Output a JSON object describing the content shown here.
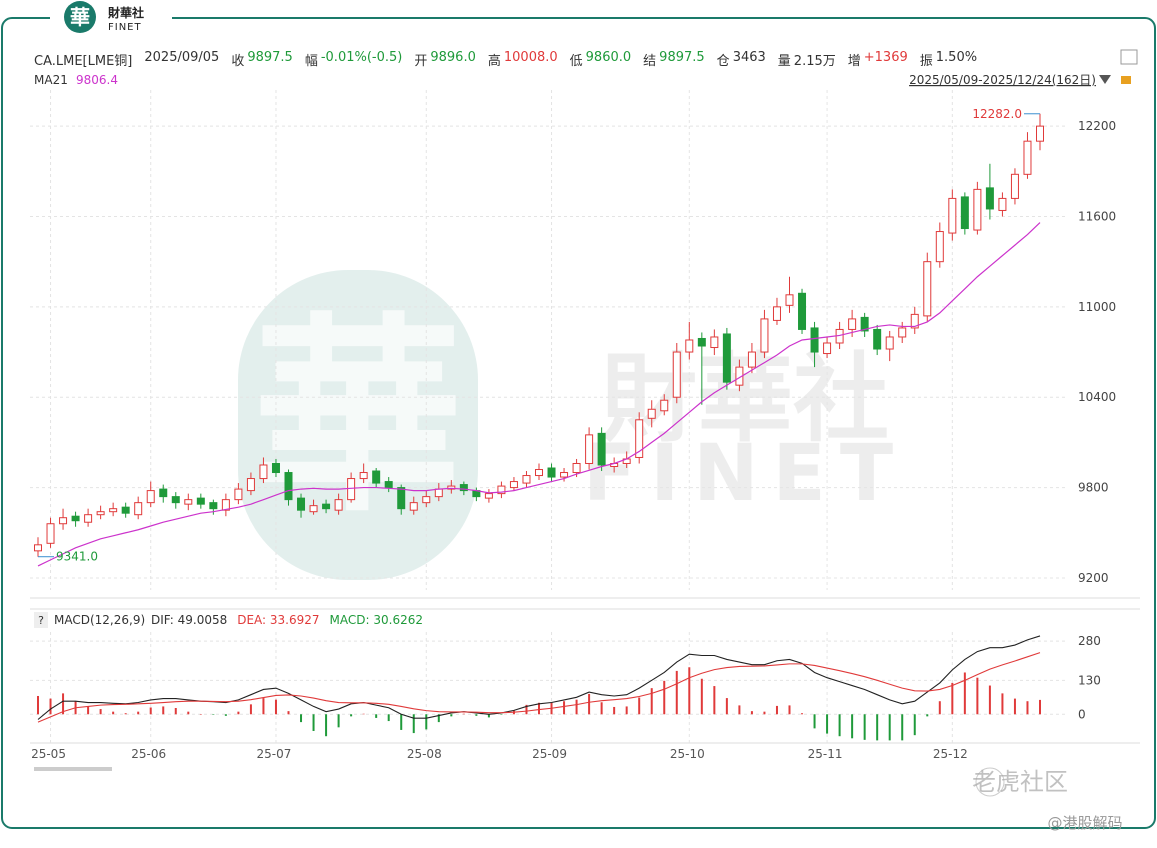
{
  "logo": {
    "mark": "華",
    "name": "財華社",
    "brand": "FINET"
  },
  "quote": {
    "symbol": "CA.LME[LME铜]",
    "date": "2025/09/05",
    "fields": [
      {
        "label": "收",
        "value": "9897.5"
      },
      {
        "label": "幅",
        "value": "-0.01%(-0.5)"
      },
      {
        "label": "开",
        "value": "9896.0"
      },
      {
        "label": "高",
        "value": "10008.0"
      },
      {
        "label": "低",
        "value": "9860.0"
      },
      {
        "label": "结",
        "value": "9897.5"
      },
      {
        "label": "仓",
        "value": "3463"
      },
      {
        "label": "量",
        "value": "2.15万"
      },
      {
        "label": "增",
        "value": "+1369"
      },
      {
        "label": "振",
        "value": "1.50%"
      }
    ]
  },
  "range": "2025/05/09-2025/12/24(162日)",
  "watermark": {
    "mark": "華",
    "name": "財華社",
    "brand": "FINET"
  },
  "footer": {
    "community": "老虎社区",
    "handle": "@港股解码"
  },
  "chart_data": [
    {
      "type": "candlestick",
      "categories": [
        null,
        "25-05",
        null,
        null,
        null,
        null,
        null,
        null,
        null,
        "25-06",
        null,
        null,
        null,
        null,
        null,
        null,
        null,
        null,
        null,
        "25-07",
        null,
        null,
        null,
        null,
        null,
        null,
        null,
        null,
        null,
        null,
        null,
        "25-08",
        null,
        null,
        null,
        null,
        null,
        null,
        null,
        null,
        null,
        "25-09",
        null,
        null,
        null,
        null,
        null,
        null,
        null,
        null,
        null,
        null,
        "25-10",
        null,
        null,
        null,
        null,
        null,
        null,
        null,
        null,
        null,
        null,
        "25-11",
        null,
        null,
        null,
        null,
        null,
        null,
        null,
        null,
        null,
        "25-12",
        null,
        null,
        null,
        null,
        null,
        null,
        null
      ],
      "open": [
        9380,
        9430,
        9560,
        9610,
        9570,
        9620,
        9640,
        9670,
        9620,
        9700,
        9790,
        9740,
        9690,
        9730,
        9700,
        9650,
        9720,
        9780,
        9860,
        9960,
        9900,
        9730,
        9640,
        9690,
        9650,
        9720,
        9860,
        9910,
        9840,
        9800,
        9650,
        9700,
        9740,
        9790,
        9820,
        9780,
        9730,
        9760,
        9800,
        9830,
        9880,
        9930,
        9870,
        9900,
        9960,
        10160,
        9940,
        9960,
        10000,
        10260,
        10310,
        10400,
        10700,
        10790,
        10730,
        10820,
        10480,
        10600,
        10700,
        10910,
        11010,
        11090,
        10860,
        10690,
        10760,
        10850,
        10930,
        10850,
        10720,
        10800,
        10860,
        10940,
        11300,
        11490,
        11730,
        11510,
        11790,
        11640,
        11720,
        11880,
        12100
      ],
      "high": [
        9470,
        9600,
        9660,
        9640,
        9660,
        9680,
        9700,
        9700,
        9740,
        9840,
        9820,
        9770,
        9760,
        9760,
        9720,
        9760,
        9830,
        9900,
        10000,
        9990,
        9920,
        9760,
        9720,
        9720,
        9760,
        9900,
        9960,
        9930,
        9870,
        9820,
        9740,
        9780,
        9830,
        9850,
        9840,
        9800,
        9790,
        9840,
        9870,
        9910,
        9960,
        9960,
        9930,
        9990,
        10200,
        10200,
        10000,
        10040,
        10300,
        10380,
        10420,
        10760,
        10900,
        10830,
        10850,
        10860,
        10650,
        10760,
        10980,
        11060,
        11200,
        11120,
        10900,
        10800,
        10900,
        10980,
        10960,
        10880,
        10840,
        10900,
        11000,
        11360,
        11560,
        11780,
        11760,
        11830,
        11950,
        11760,
        11920,
        12160,
        12282
      ],
      "low": [
        9341,
        9400,
        9520,
        9540,
        9540,
        9590,
        9610,
        9600,
        9590,
        9670,
        9700,
        9660,
        9650,
        9660,
        9620,
        9610,
        9690,
        9750,
        9830,
        9870,
        9680,
        9600,
        9620,
        9630,
        9620,
        9700,
        9830,
        9800,
        9770,
        9620,
        9620,
        9670,
        9710,
        9760,
        9750,
        9710,
        9700,
        9730,
        9780,
        9800,
        9850,
        9840,
        9840,
        9870,
        9920,
        9910,
        9900,
        9930,
        9960,
        10200,
        10280,
        10360,
        10650,
        10350,
        10680,
        10450,
        10440,
        10560,
        10660,
        10880,
        10960,
        10820,
        10600,
        10660,
        10720,
        10800,
        10800,
        10680,
        10640,
        10760,
        10820,
        10900,
        11260,
        11440,
        11480,
        11480,
        11580,
        11600,
        11680,
        11850,
        12040
      ],
      "close": [
        9420,
        9560,
        9600,
        9580,
        9620,
        9640,
        9660,
        9630,
        9700,
        9780,
        9740,
        9700,
        9720,
        9690,
        9660,
        9720,
        9790,
        9860,
        9950,
        9900,
        9720,
        9650,
        9680,
        9660,
        9720,
        9860,
        9900,
        9830,
        9800,
        9660,
        9700,
        9740,
        9790,
        9810,
        9780,
        9740,
        9760,
        9810,
        9840,
        9880,
        9920,
        9870,
        9900,
        9960,
        10150,
        9950,
        9960,
        9990,
        10250,
        10320,
        10380,
        10700,
        10780,
        10740,
        10800,
        10500,
        10600,
        10700,
        10920,
        11000,
        11080,
        10850,
        10700,
        10760,
        10850,
        10920,
        10840,
        10720,
        10800,
        10860,
        10950,
        11300,
        11500,
        11720,
        11520,
        11780,
        11650,
        11720,
        11880,
        12100,
        12200
      ],
      "up_color": "#e03a3a",
      "down_color": "#1f9a3a",
      "series": [
        {
          "name": "MA21",
          "legend_value": "9806.4",
          "color": "#cc33cc",
          "values": [
            9280,
            9320,
            9360,
            9400,
            9430,
            9460,
            9480,
            9500,
            9520,
            9545,
            9570,
            9590,
            9610,
            9630,
            9640,
            9655,
            9670,
            9690,
            9720,
            9750,
            9780,
            9790,
            9795,
            9790,
            9790,
            9795,
            9800,
            9800,
            9795,
            9790,
            9780,
            9780,
            9790,
            9795,
            9790,
            9780,
            9765,
            9770,
            9780,
            9800,
            9820,
            9840,
            9860,
            9890,
            9915,
            9940,
            9960,
            9990,
            10040,
            10100,
            10160,
            10230,
            10300,
            10370,
            10430,
            10480,
            10530,
            10580,
            10630,
            10680,
            10740,
            10780,
            10790,
            10800,
            10810,
            10830,
            10850,
            10870,
            10880,
            10870,
            10870,
            10900,
            10960,
            11040,
            11120,
            11200,
            11270,
            11340,
            11410,
            11480,
            11560
          ]
        }
      ],
      "annotations": [
        {
          "text": "12282.0",
          "value": 12282,
          "color": "#e03a3a"
        },
        {
          "text": "9341.0",
          "value": 9341,
          "color": "#1f9a3a"
        }
      ],
      "ylim": [
        9120,
        12400
      ],
      "yticks": [
        9200,
        9800,
        10400,
        11000,
        11600,
        12200
      ],
      "grid": true
    },
    {
      "type": "macd",
      "title": "MACD(12,26,9)",
      "series": [
        {
          "name": "DIF: 49.0058",
          "color": "#222222",
          "values": [
            -20,
            20,
            50,
            50,
            45,
            45,
            42,
            40,
            45,
            55,
            60,
            60,
            55,
            50,
            48,
            45,
            55,
            75,
            95,
            100,
            80,
            55,
            30,
            10,
            20,
            40,
            45,
            35,
            25,
            0,
            -15,
            -15,
            -5,
            5,
            10,
            5,
            0,
            5,
            15,
            30,
            40,
            45,
            55,
            65,
            85,
            75,
            70,
            75,
            100,
            130,
            160,
            200,
            230,
            225,
            225,
            210,
            200,
            190,
            190,
            205,
            210,
            195,
            160,
            140,
            125,
            110,
            95,
            75,
            55,
            40,
            50,
            85,
            120,
            170,
            210,
            240,
            255,
            255,
            265,
            285,
            300
          ]
        },
        {
          "name": "DEA: 33.6927",
          "color": "#e03a3a",
          "values": [
            -30,
            -10,
            10,
            25,
            30,
            35,
            37,
            38,
            40,
            42,
            45,
            48,
            50,
            50,
            49,
            48,
            50,
            56,
            64,
            72,
            74,
            70,
            62,
            52,
            45,
            44,
            44,
            42,
            38,
            30,
            21,
            14,
            10,
            9,
            9,
            8,
            6,
            6,
            8,
            12,
            18,
            23,
            30,
            37,
            46,
            52,
            56,
            60,
            68,
            80,
            96,
            117,
            140,
            157,
            171,
            179,
            183,
            184,
            185,
            189,
            193,
            193,
            187,
            177,
            167,
            156,
            144,
            130,
            115,
            100,
            90,
            89,
            95,
            110,
            130,
            152,
            173,
            189,
            204,
            220,
            236
          ]
        },
        {
          "name": "MACD: 30.6262",
          "color": "#1f9a3a",
          "up_color": "#e03a3a",
          "down_color": "#1f9a3a",
          "values": [
            70,
            60,
            80,
            50,
            30,
            20,
            10,
            4,
            10,
            26,
            30,
            24,
            10,
            0,
            -2,
            -6,
            10,
            38,
            62,
            56,
            12,
            -30,
            -64,
            -84,
            -50,
            -8,
            2,
            -14,
            -26,
            -60,
            -72,
            -58,
            -30,
            -8,
            2,
            -6,
            -12,
            -2,
            14,
            36,
            44,
            44,
            50,
            56,
            78,
            46,
            28,
            30,
            64,
            100,
            128,
            166,
            180,
            136,
            108,
            62,
            34,
            12,
            10,
            32,
            34,
            4,
            -54,
            -74,
            -84,
            -92,
            -98,
            -100,
            -100,
            -100,
            -80,
            -8,
            50,
            120,
            160,
            140,
            110,
            80,
            60,
            50,
            55
          ]
        }
      ],
      "ylim": [
        -110,
        315
      ],
      "yticks": [
        0,
        130,
        280
      ],
      "grid": true
    }
  ]
}
